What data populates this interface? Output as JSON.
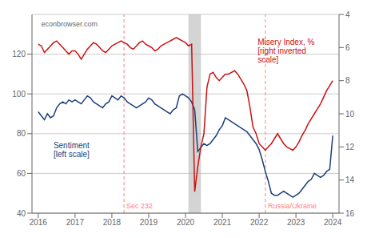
{
  "chart_data": {
    "type": "line",
    "x": [
      2016.0,
      2016.083,
      2016.167,
      2016.25,
      2016.333,
      2016.417,
      2016.5,
      2016.583,
      2016.667,
      2016.75,
      2016.833,
      2016.917,
      2017.0,
      2017.083,
      2017.167,
      2017.25,
      2017.333,
      2017.417,
      2017.5,
      2017.583,
      2017.667,
      2017.75,
      2017.833,
      2017.917,
      2018.0,
      2018.083,
      2018.167,
      2018.25,
      2018.333,
      2018.417,
      2018.5,
      2018.583,
      2018.667,
      2018.75,
      2018.833,
      2018.917,
      2019.0,
      2019.083,
      2019.167,
      2019.25,
      2019.333,
      2019.417,
      2019.5,
      2019.583,
      2019.667,
      2019.75,
      2019.833,
      2019.917,
      2020.0,
      2020.083,
      2020.167,
      2020.25,
      2020.333,
      2020.417,
      2020.5,
      2020.583,
      2020.667,
      2020.75,
      2020.833,
      2020.917,
      2021.0,
      2021.083,
      2021.167,
      2021.25,
      2021.333,
      2021.417,
      2021.5,
      2021.583,
      2021.667,
      2021.75,
      2021.833,
      2021.917,
      2022.0,
      2022.083,
      2022.167,
      2022.25,
      2022.333,
      2022.417,
      2022.5,
      2022.583,
      2022.667,
      2022.75,
      2022.833,
      2022.917,
      2023.0,
      2023.083,
      2023.167,
      2023.25,
      2023.333,
      2023.417,
      2023.5,
      2023.583,
      2023.667,
      2023.75,
      2023.833,
      2023.917,
      2024.0
    ],
    "xlim": [
      2015.83,
      2024.17
    ],
    "xticks": [
      2016,
      2017,
      2018,
      2019,
      2020,
      2021,
      2022,
      2023,
      2024
    ],
    "ylim": [
      40,
      140
    ],
    "yticks": [
      40,
      60,
      80,
      100,
      120
    ],
    "y2lim": [
      16,
      4
    ],
    "y2ticks": [
      4,
      6,
      8,
      10,
      12,
      14,
      16
    ],
    "grid": true,
    "series": [
      {
        "name": "Sentiment\n[left scale]",
        "color": "#1a3f7a",
        "values": [
          91,
          89,
          87,
          90,
          88,
          89,
          93,
          95,
          96,
          95,
          97,
          96,
          97,
          96,
          95,
          97,
          99,
          98,
          96,
          95,
          94,
          93,
          95,
          96,
          99,
          98,
          97,
          99,
          98,
          96,
          95,
          94,
          93,
          94,
          95,
          96,
          98,
          97,
          95,
          94,
          93,
          92,
          91,
          90,
          92,
          93,
          99,
          100,
          99,
          98,
          96,
          92,
          71,
          73,
          75,
          74,
          75,
          77,
          79,
          82,
          84,
          88,
          87,
          86,
          85,
          84,
          83,
          82,
          81,
          79,
          77,
          75,
          72,
          67,
          61,
          56,
          50,
          49,
          49,
          50,
          51,
          50,
          49,
          48,
          49,
          50,
          52,
          54,
          56,
          57,
          60,
          59,
          58,
          59,
          61,
          62,
          79
        ]
      },
      {
        "name": "Misery Index, %\n[right inverted\nscale]",
        "color": "#cc1111",
        "axis": "y2",
        "values": [
          5.8,
          5.9,
          6.3,
          6.1,
          5.9,
          5.7,
          5.6,
          5.8,
          6.0,
          6.2,
          6.4,
          6.2,
          6.2,
          6.4,
          6.7,
          6.4,
          6.1,
          5.9,
          5.7,
          5.8,
          6.0,
          6.2,
          6.3,
          6.1,
          5.9,
          5.8,
          5.7,
          5.6,
          5.7,
          5.8,
          6.0,
          6.1,
          5.9,
          5.7,
          5.6,
          5.8,
          5.9,
          6.0,
          6.2,
          6.1,
          5.9,
          5.8,
          5.7,
          5.6,
          5.5,
          5.4,
          5.5,
          5.6,
          5.7,
          5.9,
          5.8,
          14.7,
          13.2,
          12.0,
          11.2,
          8.4,
          7.6,
          7.5,
          7.8,
          8.0,
          7.8,
          7.6,
          7.6,
          7.5,
          7.4,
          7.6,
          7.9,
          8.2,
          8.6,
          9.6,
          10.8,
          11.2,
          11.8,
          12.0,
          12.2,
          12.0,
          11.8,
          11.5,
          11.2,
          11.5,
          11.8,
          12.0,
          12.1,
          12.2,
          12.0,
          11.7,
          11.3,
          11.0,
          10.6,
          10.3,
          10.0,
          9.7,
          9.4,
          9.0,
          8.6,
          8.3,
          8.0
        ]
      }
    ],
    "shaded": {
      "x1": 2020.08,
      "x2": 2020.42,
      "color": "#b0b0b0"
    },
    "annotations": [
      {
        "text": "Sec 232",
        "x": 2018.33,
        "y": 41.5,
        "color": "#ff8080"
      },
      {
        "text": "Russia/Ukraine",
        "x": 2022.17,
        "y": 41.5,
        "color": "#ff8080"
      },
      {
        "text": "econbrowser.com"
      }
    ]
  }
}
